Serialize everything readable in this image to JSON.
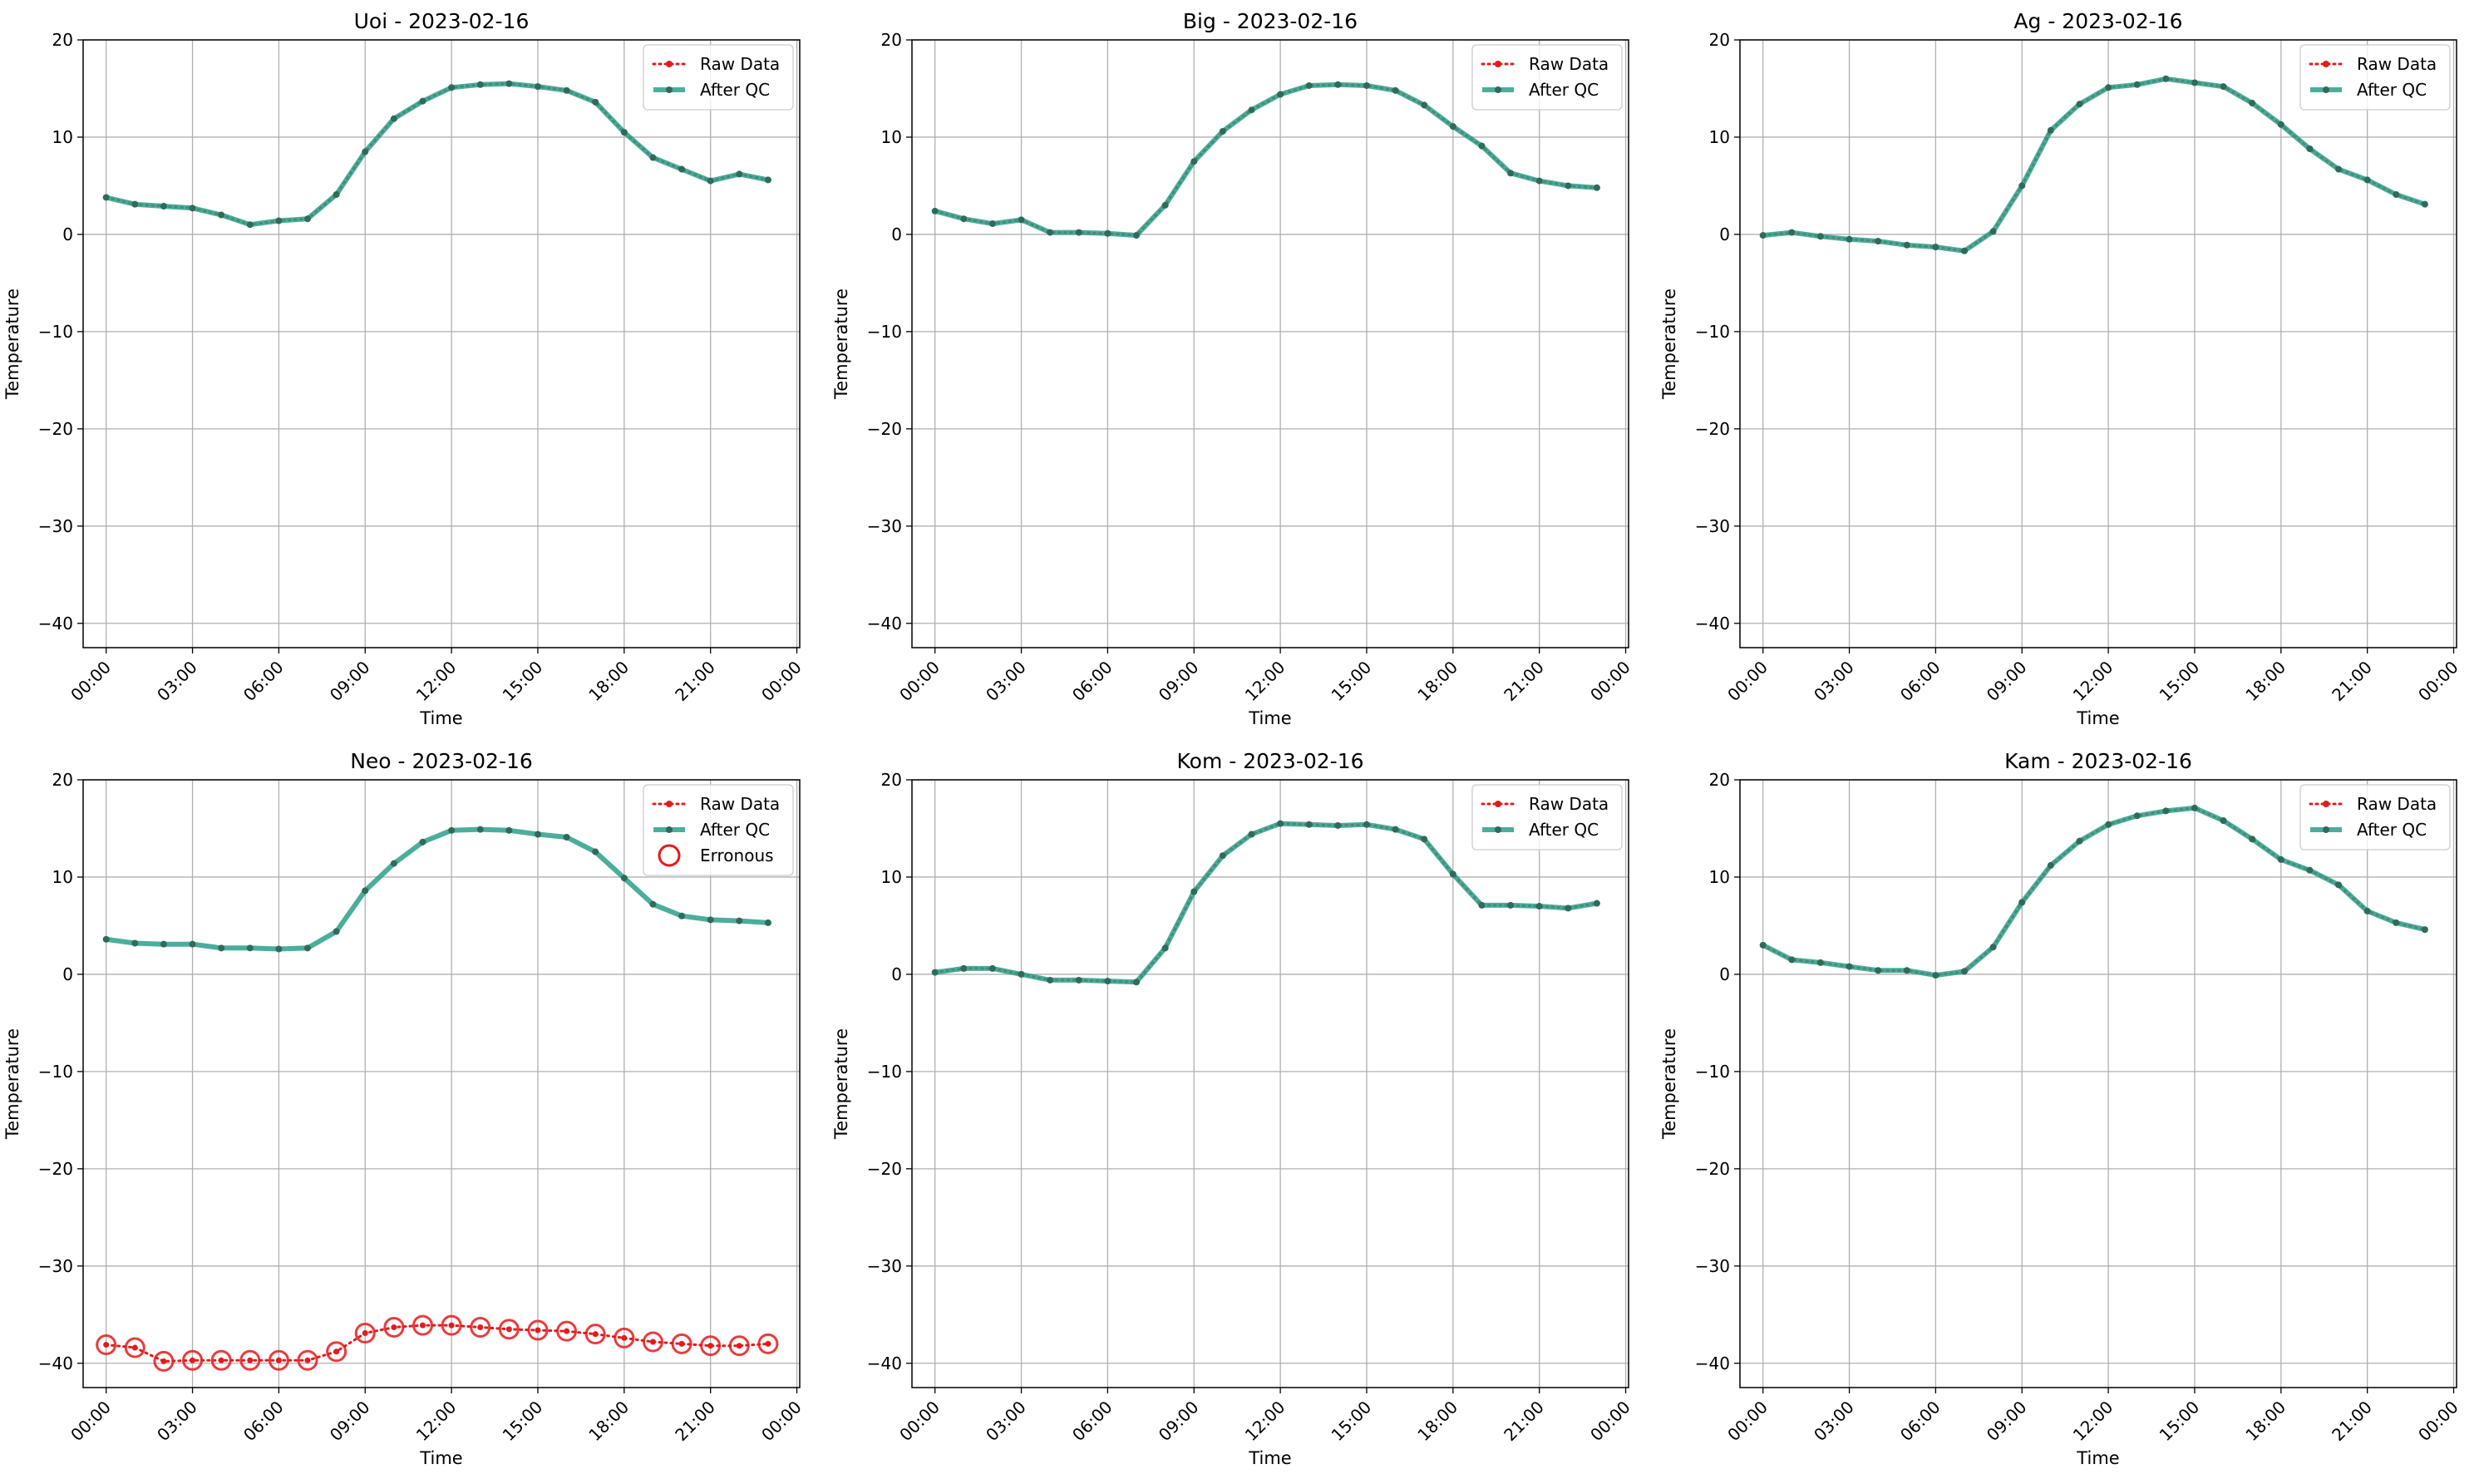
{
  "colors": {
    "raw": "#e41a1c",
    "qc": "#2ca089",
    "qc_marker": "#2f6b5a",
    "erroneous": "#e41a1c",
    "grid": "#b0b0b0"
  },
  "chart_data": [
    {
      "type": "line",
      "title": "Uoi - 2023-02-16",
      "xlabel": "Time",
      "ylabel": "Temperature",
      "ylim": [
        -42.5,
        20
      ],
      "yticks": [
        20,
        10,
        0,
        -10,
        -20,
        -30,
        -40
      ],
      "xticks": [
        "00:00",
        "03:00",
        "06:00",
        "09:00",
        "12:00",
        "15:00",
        "18:00",
        "21:00",
        "00:00"
      ],
      "grid": true,
      "legend_position": "top-right",
      "legend": [
        "Raw Data",
        "After QC"
      ],
      "x": [
        "00:00",
        "01:00",
        "02:00",
        "03:00",
        "04:00",
        "05:00",
        "06:00",
        "07:00",
        "08:00",
        "09:00",
        "10:00",
        "11:00",
        "12:00",
        "13:00",
        "14:00",
        "15:00",
        "16:00",
        "17:00",
        "18:00",
        "19:00",
        "20:00",
        "21:00",
        "22:00",
        "23:00"
      ],
      "series": [
        {
          "name": "Raw Data",
          "values": [
            3.8,
            3.1,
            2.9,
            2.7,
            2.0,
            1.0,
            1.4,
            1.6,
            4.1,
            8.5,
            11.9,
            13.7,
            15.1,
            15.4,
            15.5,
            15.2,
            14.8,
            13.6,
            10.5,
            7.9,
            6.7,
            5.5,
            6.2,
            5.6
          ]
        },
        {
          "name": "After QC",
          "values": [
            3.8,
            3.1,
            2.9,
            2.7,
            2.0,
            1.0,
            1.4,
            1.6,
            4.1,
            8.5,
            11.9,
            13.7,
            15.1,
            15.4,
            15.5,
            15.2,
            14.8,
            13.6,
            10.5,
            7.9,
            6.7,
            5.5,
            6.2,
            5.6
          ]
        }
      ]
    },
    {
      "type": "line",
      "title": "Big - 2023-02-16",
      "xlabel": "Time",
      "ylabel": "Temperature",
      "ylim": [
        -42.5,
        20
      ],
      "yticks": [
        20,
        10,
        0,
        -10,
        -20,
        -30,
        -40
      ],
      "xticks": [
        "00:00",
        "03:00",
        "06:00",
        "09:00",
        "12:00",
        "15:00",
        "18:00",
        "21:00",
        "00:00"
      ],
      "grid": true,
      "legend_position": "top-right",
      "legend": [
        "Raw Data",
        "After QC"
      ],
      "x": [
        "00:00",
        "01:00",
        "02:00",
        "03:00",
        "04:00",
        "05:00",
        "06:00",
        "07:00",
        "08:00",
        "09:00",
        "10:00",
        "11:00",
        "12:00",
        "13:00",
        "14:00",
        "15:00",
        "16:00",
        "17:00",
        "18:00",
        "19:00",
        "20:00",
        "21:00",
        "22:00",
        "23:00"
      ],
      "series": [
        {
          "name": "Raw Data",
          "values": [
            2.4,
            1.6,
            1.1,
            1.5,
            0.2,
            0.2,
            0.1,
            -0.1,
            3.0,
            7.5,
            10.6,
            12.8,
            14.4,
            15.3,
            15.4,
            15.3,
            14.8,
            13.3,
            11.1,
            9.1,
            6.3,
            5.5,
            5.0,
            4.8
          ]
        },
        {
          "name": "After QC",
          "values": [
            2.4,
            1.6,
            1.1,
            1.5,
            0.2,
            0.2,
            0.1,
            -0.1,
            3.0,
            7.5,
            10.6,
            12.8,
            14.4,
            15.3,
            15.4,
            15.3,
            14.8,
            13.3,
            11.1,
            9.1,
            6.3,
            5.5,
            5.0,
            4.8
          ]
        }
      ]
    },
    {
      "type": "line",
      "title": "Ag - 2023-02-16",
      "xlabel": "Time",
      "ylabel": "Temperature",
      "ylim": [
        -42.5,
        20
      ],
      "yticks": [
        20,
        10,
        0,
        -10,
        -20,
        -30,
        -40
      ],
      "xticks": [
        "00:00",
        "03:00",
        "06:00",
        "09:00",
        "12:00",
        "15:00",
        "18:00",
        "21:00",
        "00:00"
      ],
      "grid": true,
      "legend_position": "top-right",
      "legend": [
        "Raw Data",
        "After QC"
      ],
      "x": [
        "00:00",
        "01:00",
        "02:00",
        "03:00",
        "04:00",
        "05:00",
        "06:00",
        "07:00",
        "08:00",
        "09:00",
        "10:00",
        "11:00",
        "12:00",
        "13:00",
        "14:00",
        "15:00",
        "16:00",
        "17:00",
        "18:00",
        "19:00",
        "20:00",
        "21:00",
        "22:00",
        "23:00"
      ],
      "series": [
        {
          "name": "Raw Data",
          "values": [
            -0.1,
            0.2,
            -0.2,
            -0.5,
            -0.7,
            -1.1,
            -1.3,
            -1.7,
            0.3,
            5.0,
            10.7,
            13.4,
            15.1,
            15.4,
            16.0,
            15.6,
            15.2,
            13.5,
            11.3,
            8.8,
            6.7,
            5.6,
            4.1,
            3.1
          ]
        },
        {
          "name": "After QC",
          "values": [
            -0.1,
            0.2,
            -0.2,
            -0.5,
            -0.7,
            -1.1,
            -1.3,
            -1.7,
            0.3,
            5.0,
            10.7,
            13.4,
            15.1,
            15.4,
            16.0,
            15.6,
            15.2,
            13.5,
            11.3,
            8.8,
            6.7,
            5.6,
            4.1,
            3.1
          ]
        }
      ]
    },
    {
      "type": "line",
      "title": "Neo - 2023-02-16",
      "xlabel": "Time",
      "ylabel": "Temperature",
      "ylim": [
        -42.5,
        20
      ],
      "yticks": [
        20,
        10,
        0,
        -10,
        -20,
        -30,
        -40
      ],
      "xticks": [
        "00:00",
        "03:00",
        "06:00",
        "09:00",
        "12:00",
        "15:00",
        "18:00",
        "21:00",
        "00:00"
      ],
      "grid": true,
      "legend_position": "top-right",
      "legend": [
        "Raw Data",
        "After QC",
        "Erronous"
      ],
      "x": [
        "00:00",
        "01:00",
        "02:00",
        "03:00",
        "04:00",
        "05:00",
        "06:00",
        "07:00",
        "08:00",
        "09:00",
        "10:00",
        "11:00",
        "12:00",
        "13:00",
        "14:00",
        "15:00",
        "16:00",
        "17:00",
        "18:00",
        "19:00",
        "20:00",
        "21:00",
        "22:00",
        "23:00"
      ],
      "series": [
        {
          "name": "Raw Data",
          "values": [
            -38.1,
            -38.4,
            -39.8,
            -39.7,
            -39.7,
            -39.7,
            -39.7,
            -39.7,
            -38.8,
            -36.9,
            -36.3,
            -36.1,
            -36.1,
            -36.3,
            -36.5,
            -36.6,
            -36.7,
            -37.0,
            -37.4,
            -37.8,
            -38.0,
            -38.2,
            -38.2,
            -38.0
          ]
        },
        {
          "name": "After QC",
          "values": [
            3.6,
            3.2,
            3.1,
            3.1,
            2.7,
            2.7,
            2.6,
            2.7,
            4.4,
            8.6,
            11.4,
            13.6,
            14.8,
            14.9,
            14.8,
            14.4,
            14.1,
            12.6,
            9.9,
            7.2,
            6.0,
            5.6,
            5.5,
            5.3
          ]
        },
        {
          "name": "Erronous",
          "values": [
            -38.1,
            -38.4,
            -39.8,
            -39.7,
            -39.7,
            -39.7,
            -39.7,
            -39.7,
            -38.8,
            -36.9,
            -36.3,
            -36.1,
            -36.1,
            -36.3,
            -36.5,
            -36.6,
            -36.7,
            -37.0,
            -37.4,
            -37.8,
            -38.0,
            -38.2,
            -38.2,
            -38.0
          ]
        }
      ]
    },
    {
      "type": "line",
      "title": "Kom - 2023-02-16",
      "xlabel": "Time",
      "ylabel": "Temperature",
      "ylim": [
        -42.5,
        20
      ],
      "yticks": [
        20,
        10,
        0,
        -10,
        -20,
        -30,
        -40
      ],
      "xticks": [
        "00:00",
        "03:00",
        "06:00",
        "09:00",
        "12:00",
        "15:00",
        "18:00",
        "21:00",
        "00:00"
      ],
      "grid": true,
      "legend_position": "top-right",
      "legend": [
        "Raw Data",
        "After QC"
      ],
      "x": [
        "00:00",
        "01:00",
        "02:00",
        "03:00",
        "04:00",
        "05:00",
        "06:00",
        "07:00",
        "08:00",
        "09:00",
        "10:00",
        "11:00",
        "12:00",
        "13:00",
        "14:00",
        "15:00",
        "16:00",
        "17:00",
        "18:00",
        "19:00",
        "20:00",
        "21:00",
        "22:00",
        "23:00"
      ],
      "series": [
        {
          "name": "Raw Data",
          "values": [
            0.2,
            0.6,
            0.6,
            0.0,
            -0.6,
            -0.6,
            -0.7,
            -0.8,
            2.7,
            8.5,
            12.2,
            14.4,
            15.5,
            15.4,
            15.3,
            15.4,
            14.9,
            13.9,
            10.3,
            7.1,
            7.1,
            7.0,
            6.8,
            7.3
          ]
        },
        {
          "name": "After QC",
          "values": [
            0.2,
            0.6,
            0.6,
            0.0,
            -0.6,
            -0.6,
            -0.7,
            -0.8,
            2.7,
            8.5,
            12.2,
            14.4,
            15.5,
            15.4,
            15.3,
            15.4,
            14.9,
            13.9,
            10.3,
            7.1,
            7.1,
            7.0,
            6.8,
            7.3
          ]
        }
      ]
    },
    {
      "type": "line",
      "title": "Kam - 2023-02-16",
      "xlabel": "Time",
      "ylabel": "Temperature",
      "ylim": [
        -42.5,
        20
      ],
      "yticks": [
        20,
        10,
        0,
        -10,
        -20,
        -30,
        -40
      ],
      "xticks": [
        "00:00",
        "03:00",
        "06:00",
        "09:00",
        "12:00",
        "15:00",
        "18:00",
        "21:00",
        "00:00"
      ],
      "grid": true,
      "legend_position": "top-right",
      "legend": [
        "Raw Data",
        "After QC"
      ],
      "x": [
        "00:00",
        "01:00",
        "02:00",
        "03:00",
        "04:00",
        "05:00",
        "06:00",
        "07:00",
        "08:00",
        "09:00",
        "10:00",
        "11:00",
        "12:00",
        "13:00",
        "14:00",
        "15:00",
        "16:00",
        "17:00",
        "18:00",
        "19:00",
        "20:00",
        "21:00",
        "22:00",
        "23:00"
      ],
      "series": [
        {
          "name": "Raw Data",
          "values": [
            3.0,
            1.5,
            1.2,
            0.8,
            0.4,
            0.4,
            -0.1,
            0.3,
            2.8,
            7.4,
            11.2,
            13.7,
            15.4,
            16.3,
            16.8,
            17.1,
            15.8,
            13.9,
            11.8,
            10.7,
            9.2,
            6.5,
            5.3,
            4.6
          ]
        },
        {
          "name": "After QC",
          "values": [
            3.0,
            1.5,
            1.2,
            0.8,
            0.4,
            0.4,
            -0.1,
            0.3,
            2.8,
            7.4,
            11.2,
            13.7,
            15.4,
            16.3,
            16.8,
            17.1,
            15.8,
            13.9,
            11.8,
            10.7,
            9.2,
            6.5,
            5.3,
            4.6
          ]
        }
      ]
    }
  ]
}
